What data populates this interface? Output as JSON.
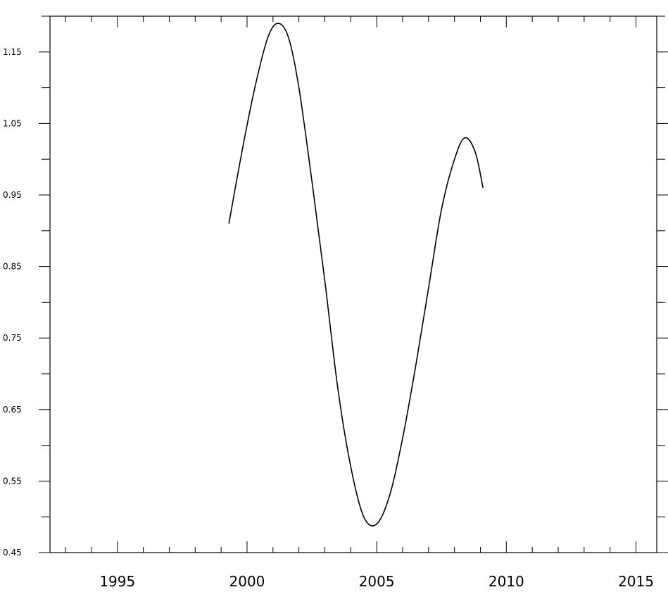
{
  "chart_data": {
    "type": "line",
    "title": "",
    "xlabel": "",
    "ylabel": "",
    "xlim": [
      1992.4,
      2015.8
    ],
    "ylim": [
      0.45,
      1.2
    ],
    "x_major_ticks": [
      1995,
      2000,
      2005,
      2010,
      2015
    ],
    "x_tick_labels": [
      "1995",
      "2000",
      "2005",
      "2010",
      "2015"
    ],
    "x_minor_step": 1,
    "y_major_ticks": [
      0.45,
      0.55,
      0.65,
      0.75,
      0.85,
      0.95,
      1.05,
      1.15
    ],
    "y_tick_labels": [
      "0.45",
      "0.55",
      "0.65",
      "0.75",
      "0.85",
      "0.95",
      "1.05",
      "1.15"
    ],
    "y_minor_step": 0.05,
    "grid": false,
    "legend": "none",
    "line_color": "#000000",
    "series": [
      {
        "x": [
          1999.3,
          1999.8,
          2000.3,
          2000.8,
          2001.2,
          2001.6,
          2002.0,
          2002.5,
          2003.0,
          2003.5,
          2004.0,
          2004.5,
          2005.0,
          2005.5,
          2006.0,
          2006.5,
          2007.0,
          2007.5,
          2008.0,
          2008.4,
          2008.8,
          2009.1
        ],
        "y": [
          0.91,
          1.01,
          1.1,
          1.17,
          1.19,
          1.17,
          1.1,
          0.97,
          0.83,
          0.68,
          0.57,
          0.5,
          0.49,
          0.53,
          0.61,
          0.71,
          0.82,
          0.93,
          1.0,
          1.03,
          1.01,
          0.96
        ]
      }
    ]
  }
}
